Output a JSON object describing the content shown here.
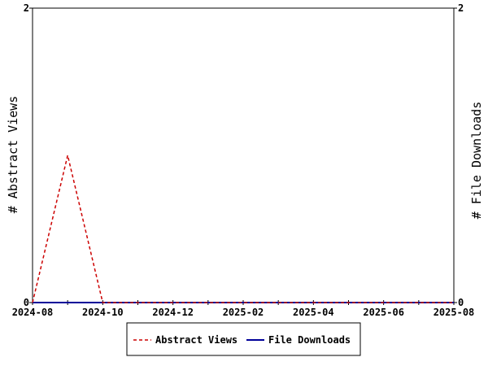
{
  "chart_data": {
    "type": "line",
    "x": [
      "2024-08",
      "2024-09",
      "2024-10",
      "2024-11",
      "2024-12",
      "2025-01",
      "2025-02",
      "2025-03",
      "2025-04",
      "2025-05",
      "2025-06",
      "2025-07",
      "2025-08"
    ],
    "x_tick_labels": [
      "2024-08",
      "2024-10",
      "2024-12",
      "2025-02",
      "2025-04",
      "2025-06",
      "2025-08"
    ],
    "series": [
      {
        "name": "Abstract Views",
        "axis": "left",
        "color": "#cc0000",
        "style": "dashed",
        "values": [
          0,
          1,
          0,
          0,
          0,
          0,
          0,
          0,
          0,
          0,
          0,
          0,
          0
        ]
      },
      {
        "name": "File Downloads",
        "axis": "right",
        "color": "#000099",
        "style": "solid",
        "values": [
          0,
          0,
          0,
          0,
          0,
          0,
          0,
          0,
          0,
          0,
          0,
          0,
          0
        ]
      }
    ],
    "ylabel": "# Abstract Views",
    "y2label": "# File Downloads",
    "ylim": [
      0,
      2
    ],
    "y2lim": [
      0,
      2
    ],
    "y_ticks": [
      "0",
      "2"
    ],
    "y2_ticks": [
      "0",
      "2"
    ],
    "grid": false,
    "legend_position": "bottom"
  }
}
